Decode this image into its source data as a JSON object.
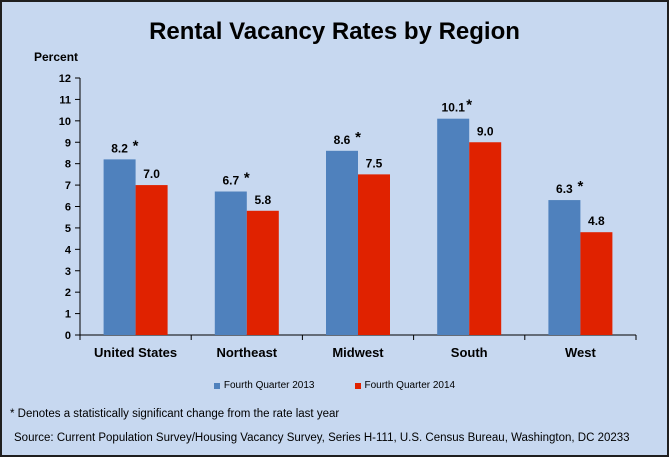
{
  "chart_data": {
    "type": "bar",
    "title": "Rental Vacancy Rates by Region",
    "ylabel": "Percent",
    "xlabel": "",
    "ylim": [
      0,
      12
    ],
    "yticks": [
      0,
      1,
      2,
      3,
      4,
      5,
      6,
      7,
      8,
      9,
      10,
      11,
      12
    ],
    "grid": false,
    "legend_position": "bottom",
    "categories": [
      "United States",
      "Northeast",
      "Midwest",
      "South",
      "West"
    ],
    "series": [
      {
        "name": "Fourth Quarter 2013",
        "color": "#4f81bd",
        "values": [
          8.2,
          6.7,
          8.6,
          10.1,
          6.3
        ],
        "labels": [
          "8.2",
          "6.7",
          "8.6",
          "10.1",
          "6.3"
        ],
        "significant": [
          true,
          true,
          true,
          true,
          true
        ]
      },
      {
        "name": "Fourth Quarter 2014",
        "color": "#e02200",
        "values": [
          7.0,
          5.8,
          7.5,
          9.0,
          4.8
        ],
        "labels": [
          "7.0",
          "5.8",
          "7.5",
          "9.0",
          "4.8"
        ],
        "significant": [
          false,
          false,
          false,
          false,
          false
        ]
      }
    ],
    "significance_marker": "*"
  },
  "footnote": "* Denotes a statistically significant change from the rate last year",
  "source": "Source: Current Population Survey/Housing Vacancy Survey,  Series H-111, U.S. Census Bureau, Washington, DC 20233"
}
